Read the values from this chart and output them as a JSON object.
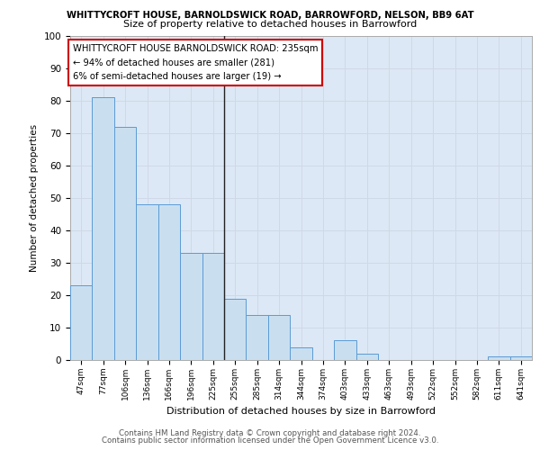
{
  "title1": "WHITTYCROFT HOUSE, BARNOLDSWICK ROAD, BARROWFORD, NELSON, BB9 6AT",
  "title2": "Size of property relative to detached houses in Barrowford",
  "xlabel": "Distribution of detached houses by size in Barrowford",
  "ylabel": "Number of detached properties",
  "categories": [
    "47sqm",
    "77sqm",
    "106sqm",
    "136sqm",
    "166sqm",
    "196sqm",
    "225sqm",
    "255sqm",
    "285sqm",
    "314sqm",
    "344sqm",
    "374sqm",
    "403sqm",
    "433sqm",
    "463sqm",
    "493sqm",
    "522sqm",
    "552sqm",
    "582sqm",
    "611sqm",
    "641sqm"
  ],
  "values": [
    23,
    81,
    72,
    48,
    48,
    33,
    33,
    19,
    14,
    14,
    4,
    0,
    6,
    2,
    0,
    0,
    0,
    0,
    0,
    1,
    1
  ],
  "bar_color": "#c9dff0",
  "bar_edge_color": "#5b9bd5",
  "vline_index": 6,
  "annotation_box_text": "WHITTYCROFT HOUSE BARNOLDSWICK ROAD: 235sqm\n← 94% of detached houses are smaller (281)\n6% of semi-detached houses are larger (19) →",
  "annotation_box_color": "#ffffff",
  "annotation_box_edge_color": "#cc0000",
  "ylim": [
    0,
    100
  ],
  "yticks": [
    0,
    10,
    20,
    30,
    40,
    50,
    60,
    70,
    80,
    90,
    100
  ],
  "grid_color": "#d0d8e8",
  "background_color": "#dce8f5",
  "footer1": "Contains HM Land Registry data © Crown copyright and database right 2024.",
  "footer2": "Contains public sector information licensed under the Open Government Licence v3.0."
}
